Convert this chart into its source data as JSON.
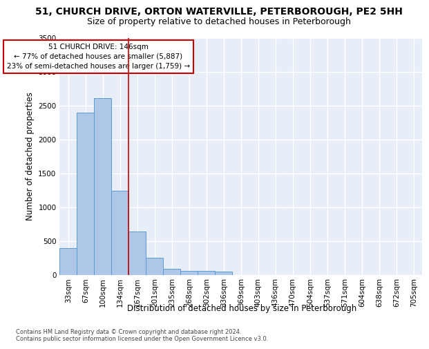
{
  "title_line1": "51, CHURCH DRIVE, ORTON WATERVILLE, PETERBOROUGH, PE2 5HH",
  "title_line2": "Size of property relative to detached houses in Peterborough",
  "xlabel": "Distribution of detached houses by size in Peterborough",
  "ylabel": "Number of detached properties",
  "footer_line1": "Contains HM Land Registry data © Crown copyright and database right 2024.",
  "footer_line2": "Contains public sector information licensed under the Open Government Licence v3.0.",
  "categories": [
    "33sqm",
    "67sqm",
    "100sqm",
    "134sqm",
    "167sqm",
    "201sqm",
    "235sqm",
    "268sqm",
    "302sqm",
    "336sqm",
    "369sqm",
    "403sqm",
    "436sqm",
    "470sqm",
    "504sqm",
    "537sqm",
    "571sqm",
    "604sqm",
    "638sqm",
    "672sqm",
    "705sqm"
  ],
  "values": [
    390,
    2400,
    2610,
    1240,
    640,
    255,
    90,
    55,
    55,
    45,
    0,
    0,
    0,
    0,
    0,
    0,
    0,
    0,
    0,
    0,
    0
  ],
  "bar_color": "#aec6e8",
  "bar_edge_color": "#5b9bd5",
  "annotation_title": "51 CHURCH DRIVE: 146sqm",
  "annotation_line2": "← 77% of detached houses are smaller (5,887)",
  "annotation_line3": "23% of semi-detached houses are larger (1,759) →",
  "annotation_box_color": "#ffffff",
  "annotation_border_color": "#cc0000",
  "vline_x_index": 3.5,
  "vline_color": "#cc0000",
  "ylim": [
    0,
    3500
  ],
  "yticks": [
    0,
    500,
    1000,
    1500,
    2000,
    2500,
    3000,
    3500
  ],
  "background_color": "#e8eef8",
  "grid_color": "#ffffff",
  "title_fontsize": 10,
  "subtitle_fontsize": 9,
  "axis_label_fontsize": 8.5,
  "tick_fontsize": 7.5,
  "footer_fontsize": 6.0
}
